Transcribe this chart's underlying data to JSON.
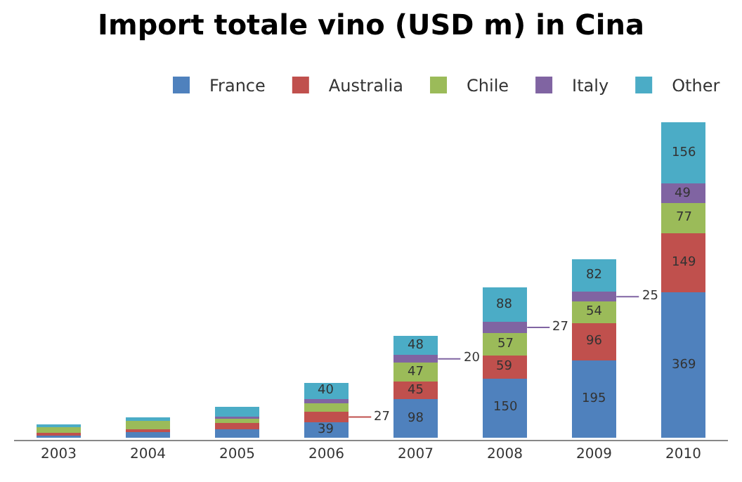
{
  "chart_data": {
    "type": "bar",
    "title": "Import totale vino (USD m) in Cina",
    "categories": [
      "2003",
      "2004",
      "2005",
      "2006",
      "2007",
      "2008",
      "2009",
      "2010"
    ],
    "stacked": true,
    "legend": "top",
    "tick_labels": "x",
    "series": [
      {
        "name": "France",
        "color": "#4f81bd",
        "values": [
          8,
          14,
          22,
          39,
          98,
          150,
          195,
          369
        ],
        "value_labels": [
          null,
          null,
          null,
          "39",
          "98",
          "150",
          "195",
          "369"
        ]
      },
      {
        "name": "Australia",
        "color": "#c0504d",
        "values": [
          5,
          8,
          15,
          27,
          45,
          59,
          96,
          149
        ],
        "value_labels": [
          null,
          null,
          null,
          "27",
          "45",
          "59",
          "96",
          "149"
        ]
      },
      {
        "name": "Chile",
        "color": "#9bbb59",
        "values": [
          13,
          20,
          11,
          21,
          47,
          57,
          54,
          77
        ],
        "value_labels": [
          null,
          null,
          null,
          null,
          "47",
          "57",
          "54",
          "77"
        ]
      },
      {
        "name": "Italy",
        "color": "#8064a2",
        "values": [
          null,
          null,
          5,
          11,
          20,
          27,
          25,
          49
        ],
        "value_labels": [
          null,
          null,
          null,
          null,
          "20",
          "27",
          "25",
          "49"
        ]
      },
      {
        "name": "Other",
        "color": "#4bacc6",
        "values": [
          8,
          10,
          26,
          40,
          48,
          88,
          82,
          156
        ],
        "value_labels": [
          null,
          null,
          null,
          "40",
          "48",
          "88",
          "82",
          "156"
        ]
      }
    ]
  }
}
